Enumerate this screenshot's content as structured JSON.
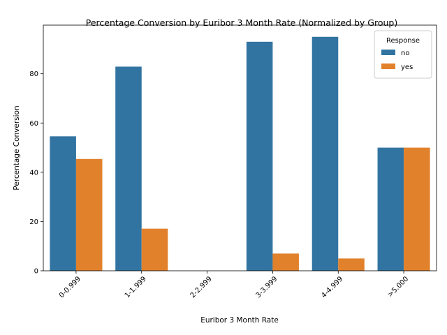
{
  "chart_data": {
    "type": "bar",
    "title": "Percentage Conversion by Euribor 3 Month Rate (Normalized by Group)",
    "xlabel": "Euribor 3 Month Rate",
    "ylabel": "Percentage Conversion",
    "categories": [
      "0-0.999",
      "1-1.999",
      "2-2.999",
      "3-3.999",
      "4-4.999",
      ">5.000"
    ],
    "series": [
      {
        "name": "no",
        "color": "#3274a1",
        "values": [
          54.6,
          82.9,
          0,
          93.0,
          95.0,
          50.0
        ]
      },
      {
        "name": "yes",
        "color": "#e1812c",
        "values": [
          45.4,
          17.1,
          0,
          7.0,
          5.0,
          50.0
        ]
      }
    ],
    "yticks": [
      0,
      20,
      40,
      60,
      80
    ],
    "ylim": [
      0,
      99.75
    ],
    "legend": {
      "title": "Response",
      "position": "top-right"
    },
    "grid": false
  }
}
